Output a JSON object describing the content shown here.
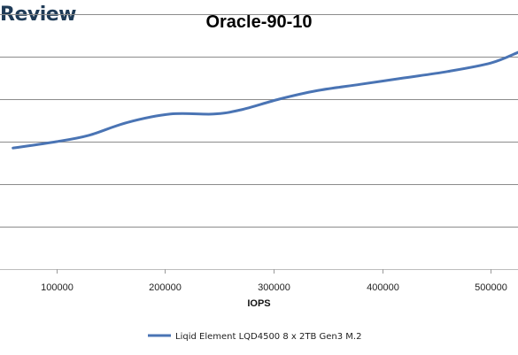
{
  "brand": {
    "name": "Review"
  },
  "chart_data": {
    "type": "line",
    "title": "Oracle-90-10",
    "xlabel": "IOPS",
    "ylabel": "",
    "xlim": [
      48000,
      525000
    ],
    "ylim": [
      0,
      6
    ],
    "x_ticks": [
      100000,
      200000,
      300000,
      400000,
      500000
    ],
    "x_tick_labels": [
      "100000",
      "200000",
      "300000",
      "400000",
      "500000"
    ],
    "y_gridlines": [
      1,
      2,
      3,
      4,
      5,
      6
    ],
    "grid": true,
    "legend_position": "bottom",
    "series": [
      {
        "name": "Liqid Element LQD4500 8 x 2TB Gen3 M.2",
        "color": "#4a74b4",
        "x": [
          60000,
          100000,
          130000,
          165000,
          205000,
          245000,
          270000,
          305000,
          340000,
          380000,
          420000,
          460000,
          500000,
          525000
        ],
        "y": [
          2.85,
          3.0,
          3.15,
          3.45,
          3.65,
          3.65,
          3.75,
          4.0,
          4.2,
          4.35,
          4.5,
          4.65,
          4.85,
          5.1
        ]
      }
    ]
  }
}
